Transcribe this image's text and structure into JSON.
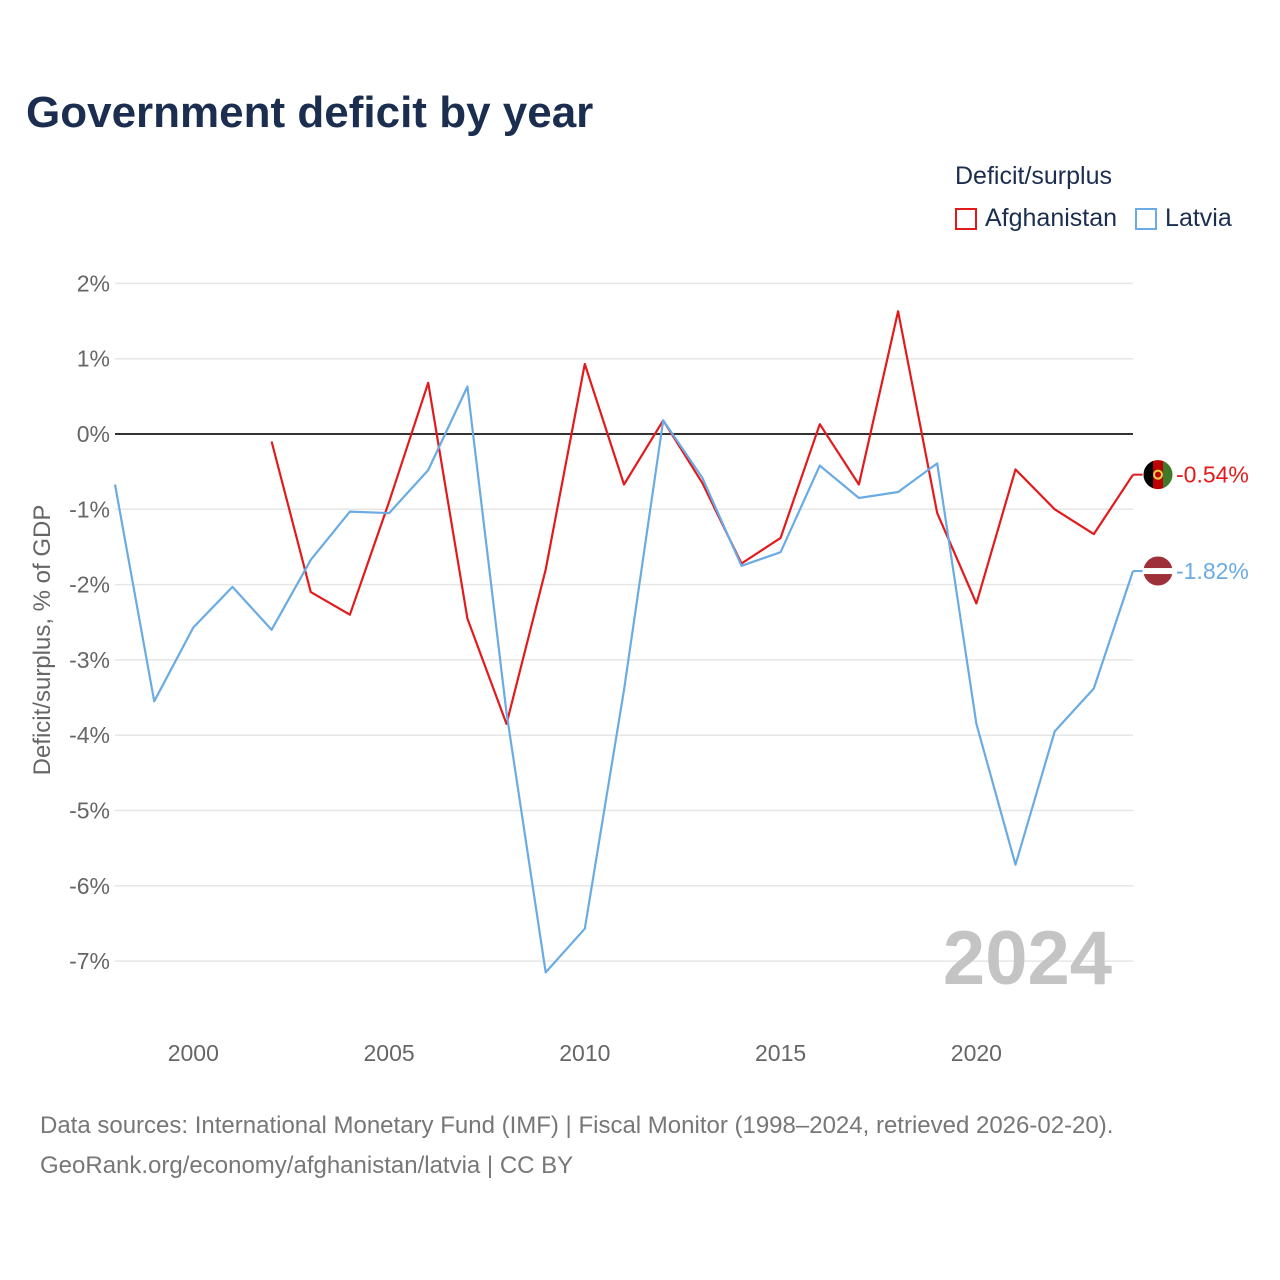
{
  "title": "Government deficit by year",
  "legend": {
    "title": "Deficit/surplus",
    "items": [
      {
        "name": "Afghanistan",
        "color": "#e31a1c"
      },
      {
        "name": "Latvia",
        "color": "#6aabe4"
      }
    ]
  },
  "year_watermark": "2024",
  "footer": {
    "line1": "Data sources: International Monetary Fund (IMF) | Fiscal Monitor (1998–2024, retrieved 2026-02-20).",
    "line2": "GeoRank.org/economy/afghanistan/latvia | CC BY"
  },
  "chart_data": {
    "type": "line",
    "title": "Government deficit by year",
    "xlabel": "",
    "ylabel": "Deficit/surplus, % of GDP",
    "xlim": [
      1998,
      2024
    ],
    "ylim": [
      -7.5,
      2
    ],
    "x_ticks": [
      2000,
      2005,
      2010,
      2015,
      2020
    ],
    "y_ticks": [
      2,
      1,
      0,
      -1,
      -2,
      -3,
      -4,
      -5,
      -6,
      -7
    ],
    "y_tick_labels": [
      "2%",
      "1%",
      "0%",
      "-1%",
      "-2%",
      "-3%",
      "-4%",
      "-5%",
      "-6%",
      "-7%"
    ],
    "grid": true,
    "series": [
      {
        "name": "Afghanistan",
        "color": "#e31a1c",
        "end_label": "-0.54%",
        "x": [
          2002,
          2003,
          2004,
          2005,
          2006,
          2007,
          2008,
          2009,
          2010,
          2011,
          2012,
          2013,
          2014,
          2015,
          2016,
          2017,
          2018,
          2019,
          2020,
          2021,
          2022,
          2023,
          2024
        ],
        "y": [
          -0.1,
          -2.1,
          -2.4,
          -0.9,
          0.68,
          -2.45,
          -3.85,
          -1.8,
          0.93,
          -0.67,
          0.18,
          -0.65,
          -1.72,
          -1.38,
          0.13,
          -0.67,
          1.63,
          -1.05,
          -2.25,
          -0.47,
          -1.0,
          -1.33,
          -0.54
        ]
      },
      {
        "name": "Latvia",
        "color": "#6aabe4",
        "end_label": "-1.82%",
        "x": [
          1998,
          1999,
          2000,
          2001,
          2002,
          2003,
          2004,
          2005,
          2006,
          2007,
          2008,
          2009,
          2010,
          2011,
          2012,
          2013,
          2014,
          2015,
          2016,
          2017,
          2018,
          2019,
          2020,
          2021,
          2022,
          2023,
          2024
        ],
        "y": [
          -0.67,
          -3.55,
          -2.57,
          -2.03,
          -2.6,
          -1.67,
          -1.03,
          -1.05,
          -0.48,
          0.63,
          -3.7,
          -7.15,
          -6.57,
          -3.4,
          0.18,
          -0.58,
          -1.75,
          -1.57,
          -0.42,
          -0.85,
          -0.77,
          -0.39,
          -3.85,
          -5.72,
          -3.95,
          -3.38,
          -1.82
        ]
      }
    ]
  }
}
